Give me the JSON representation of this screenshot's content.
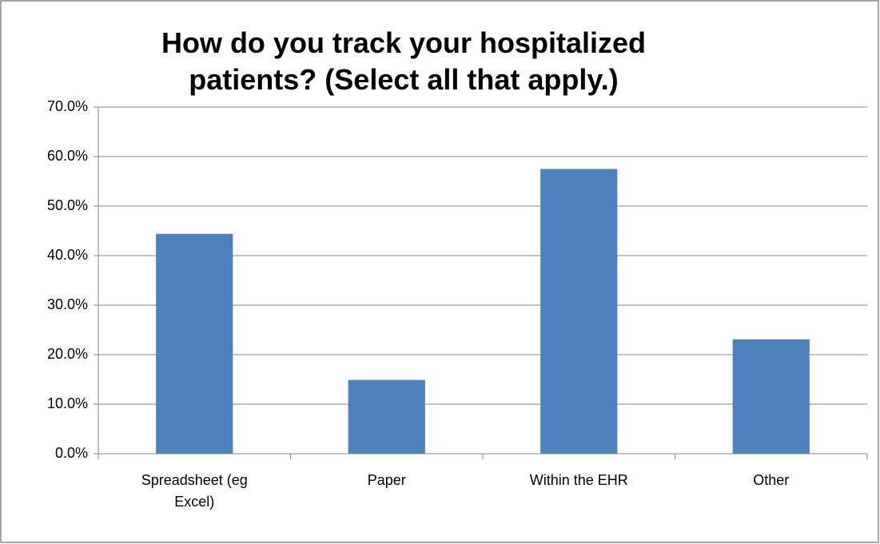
{
  "chart_data": {
    "type": "bar",
    "title": "How do you track your hospitalized patients? (Select all that apply.)",
    "categories": [
      "Spreadsheet (eg Excel)",
      "Paper",
      "Within the EHR",
      "Other"
    ],
    "values": [
      44.4,
      14.9,
      57.5,
      23.1
    ],
    "color": "#4f81bd",
    "ylim": [
      0,
      70
    ],
    "yticks": [
      {
        "value": 0,
        "label": "0.0%"
      },
      {
        "value": 10,
        "label": "10.0%"
      },
      {
        "value": 20,
        "label": "20.0%"
      },
      {
        "value": 30,
        "label": "30.0%"
      },
      {
        "value": 40,
        "label": "40.0%"
      },
      {
        "value": 50,
        "label": "50.0%"
      },
      {
        "value": 60,
        "label": "60.0%"
      },
      {
        "value": 70,
        "label": "70.0%"
      }
    ],
    "grid": true
  }
}
